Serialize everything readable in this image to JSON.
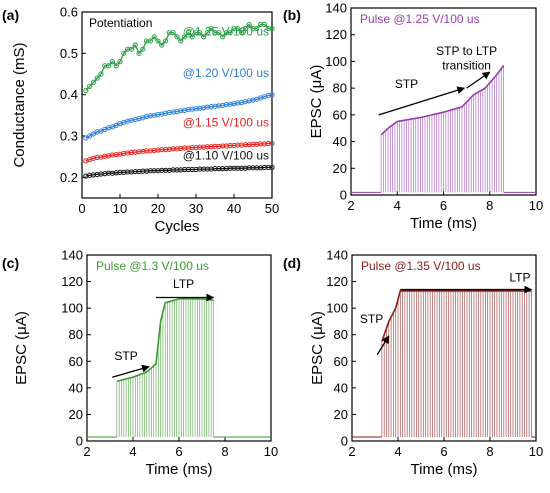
{
  "chart_data": [
    {
      "panel_label": "(a)",
      "type": "scatter",
      "title": "Potentiation",
      "xlabel": "Cycles",
      "ylabel": "Conductance (mS)",
      "xlim": [
        0,
        50
      ],
      "ylim": [
        0.15,
        0.6
      ],
      "xticks": [
        0,
        10,
        20,
        30,
        40,
        50
      ],
      "yticks": [
        0.2,
        0.3,
        0.4,
        0.5,
        0.6
      ],
      "series": [
        {
          "name": "@1.25 V/100 us",
          "color": "#2e9e4a",
          "x": [
            1,
            2,
            3,
            4,
            5,
            6,
            7,
            8,
            9,
            10,
            11,
            12,
            13,
            14,
            15,
            16,
            17,
            18,
            19,
            20,
            21,
            22,
            23,
            24,
            25,
            26,
            27,
            28,
            29,
            30,
            31,
            32,
            33,
            34,
            35,
            36,
            37,
            38,
            39,
            40,
            41,
            42,
            43,
            44,
            45,
            46,
            47,
            48,
            49,
            50
          ],
          "y": [
            0.41,
            0.42,
            0.43,
            0.44,
            0.45,
            0.47,
            0.47,
            0.48,
            0.47,
            0.48,
            0.5,
            0.51,
            0.51,
            0.52,
            0.5,
            0.51,
            0.53,
            0.53,
            0.54,
            0.53,
            0.52,
            0.53,
            0.55,
            0.55,
            0.54,
            0.53,
            0.54,
            0.55,
            0.54,
            0.55,
            0.55,
            0.54,
            0.55,
            0.56,
            0.55,
            0.55,
            0.54,
            0.55,
            0.55,
            0.56,
            0.56,
            0.55,
            0.56,
            0.57,
            0.56,
            0.56,
            0.57,
            0.57,
            0.56,
            0.56
          ]
        },
        {
          "name": "@1.20 V/100 us",
          "color": "#2f7fd6",
          "x": [
            1,
            2,
            3,
            4,
            5,
            6,
            7,
            8,
            9,
            10,
            11,
            12,
            13,
            14,
            15,
            16,
            17,
            18,
            19,
            20,
            21,
            22,
            23,
            24,
            25,
            26,
            27,
            28,
            29,
            30,
            31,
            32,
            33,
            34,
            35,
            36,
            37,
            38,
            39,
            40,
            41,
            42,
            43,
            44,
            45,
            46,
            47,
            48,
            49,
            50
          ],
          "y": [
            0.295,
            0.3,
            0.305,
            0.31,
            0.312,
            0.316,
            0.32,
            0.322,
            0.326,
            0.33,
            0.333,
            0.336,
            0.338,
            0.34,
            0.342,
            0.344,
            0.347,
            0.349,
            0.35,
            0.352,
            0.353,
            0.355,
            0.357,
            0.358,
            0.359,
            0.361,
            0.362,
            0.364,
            0.365,
            0.366,
            0.367,
            0.368,
            0.37,
            0.371,
            0.372,
            0.373,
            0.374,
            0.376,
            0.377,
            0.378,
            0.38,
            0.381,
            0.383,
            0.385,
            0.387,
            0.389,
            0.392,
            0.395,
            0.398,
            0.4
          ]
        },
        {
          "name": "@1.15 V/100 us",
          "color": "#e8231f",
          "x": [
            1,
            2,
            3,
            4,
            5,
            6,
            7,
            8,
            9,
            10,
            11,
            12,
            13,
            14,
            15,
            16,
            17,
            18,
            19,
            20,
            21,
            22,
            23,
            24,
            25,
            26,
            27,
            28,
            29,
            30,
            31,
            32,
            33,
            34,
            35,
            36,
            37,
            38,
            39,
            40,
            41,
            42,
            43,
            44,
            45,
            46,
            47,
            48,
            49,
            50
          ],
          "y": [
            0.24,
            0.243,
            0.246,
            0.248,
            0.249,
            0.251,
            0.252,
            0.254,
            0.255,
            0.256,
            0.258,
            0.259,
            0.26,
            0.261,
            0.262,
            0.263,
            0.264,
            0.264,
            0.265,
            0.266,
            0.267,
            0.267,
            0.268,
            0.269,
            0.269,
            0.27,
            0.271,
            0.271,
            0.272,
            0.272,
            0.273,
            0.273,
            0.274,
            0.274,
            0.275,
            0.275,
            0.276,
            0.276,
            0.277,
            0.277,
            0.278,
            0.278,
            0.279,
            0.279,
            0.28,
            0.28,
            0.281,
            0.281,
            0.282,
            0.282
          ]
        },
        {
          "name": "@1.10 V/100 us",
          "color": "#111111",
          "x": [
            1,
            2,
            3,
            4,
            5,
            6,
            7,
            8,
            9,
            10,
            11,
            12,
            13,
            14,
            15,
            16,
            17,
            18,
            19,
            20,
            21,
            22,
            23,
            24,
            25,
            26,
            27,
            28,
            29,
            30,
            31,
            32,
            33,
            34,
            35,
            36,
            37,
            38,
            39,
            40,
            41,
            42,
            43,
            44,
            45,
            46,
            47,
            48,
            49,
            50
          ],
          "y": [
            0.203,
            0.205,
            0.206,
            0.207,
            0.208,
            0.209,
            0.21,
            0.21,
            0.211,
            0.212,
            0.212,
            0.213,
            0.213,
            0.214,
            0.214,
            0.215,
            0.215,
            0.216,
            0.216,
            0.216,
            0.217,
            0.217,
            0.217,
            0.218,
            0.218,
            0.218,
            0.219,
            0.219,
            0.219,
            0.219,
            0.22,
            0.22,
            0.22,
            0.22,
            0.221,
            0.221,
            0.221,
            0.221,
            0.222,
            0.222,
            0.222,
            0.222,
            0.222,
            0.223,
            0.223,
            0.223,
            0.223,
            0.224,
            0.224,
            0.224
          ]
        }
      ]
    },
    {
      "panel_label": "(b)",
      "type": "line",
      "title": "Pulse @1.25 V/100 us",
      "xlabel": "Time (ms)",
      "ylabel": "EPSC (μA)",
      "xlim": [
        2,
        10
      ],
      "ylim": [
        0,
        140
      ],
      "xticks": [
        2,
        4,
        6,
        8,
        10
      ],
      "yticks": [
        0,
        20,
        40,
        60,
        80,
        100,
        120,
        140
      ],
      "color": "#9b3bb0",
      "baseline": 2,
      "pulse_start_ms": 3.3,
      "pulse_end_ms": 8.6,
      "pulse_period_ms": 0.1,
      "envelope": {
        "t": [
          3.3,
          3.6,
          4.0,
          5.0,
          6.0,
          6.8,
          7.3,
          7.8,
          8.3,
          8.6
        ],
        "peak": [
          45,
          50,
          55,
          58,
          62,
          66,
          75,
          80,
          90,
          97
        ]
      },
      "annotations": [
        {
          "text": "STP"
        },
        {
          "text": "STP to LTP"
        },
        {
          "text": "transition"
        }
      ]
    },
    {
      "panel_label": "(c)",
      "type": "line",
      "title": "Pulse @1.3 V/100 us",
      "xlabel": "Time (ms)",
      "ylabel": "EPSC (μA)",
      "xlim": [
        2,
        10
      ],
      "ylim": [
        0,
        140
      ],
      "xticks": [
        2,
        4,
        6,
        8,
        10
      ],
      "yticks": [
        0,
        20,
        40,
        60,
        80,
        100,
        120,
        140
      ],
      "color": "#3a9a2e",
      "baseline": 3,
      "pulse_start_ms": 3.3,
      "pulse_end_ms": 7.5,
      "pulse_period_ms": 0.1,
      "envelope": {
        "t": [
          3.3,
          4.0,
          4.6,
          5.0,
          5.2,
          5.4,
          6.0,
          7.0,
          7.5
        ],
        "peak": [
          45,
          48,
          52,
          58,
          90,
          104,
          107,
          107,
          106
        ]
      },
      "annotations": [
        {
          "text": "STP"
        },
        {
          "text": "LTP"
        }
      ]
    },
    {
      "panel_label": "(d)",
      "type": "line",
      "title": "Pulse @1.35 V/100 us",
      "xlabel": "Time (ms)",
      "ylabel": "EPSC (μA)",
      "xlim": [
        2,
        10
      ],
      "ylim": [
        0,
        140
      ],
      "xticks": [
        2,
        4,
        6,
        8,
        10
      ],
      "yticks": [
        0,
        20,
        40,
        60,
        80,
        100,
        120,
        140
      ],
      "color": "#8b1a1a",
      "baseline": 3,
      "pulse_start_ms": 3.3,
      "pulse_end_ms": 9.8,
      "pulse_period_ms": 0.1,
      "envelope": {
        "t": [
          3.3,
          3.6,
          3.9,
          4.1,
          5.0,
          7.0,
          9.0,
          9.8
        ],
        "peak": [
          75,
          90,
          100,
          113,
          113,
          113,
          113,
          113
        ]
      },
      "annotations": [
        {
          "text": "STP"
        },
        {
          "text": "LTP"
        }
      ]
    }
  ]
}
